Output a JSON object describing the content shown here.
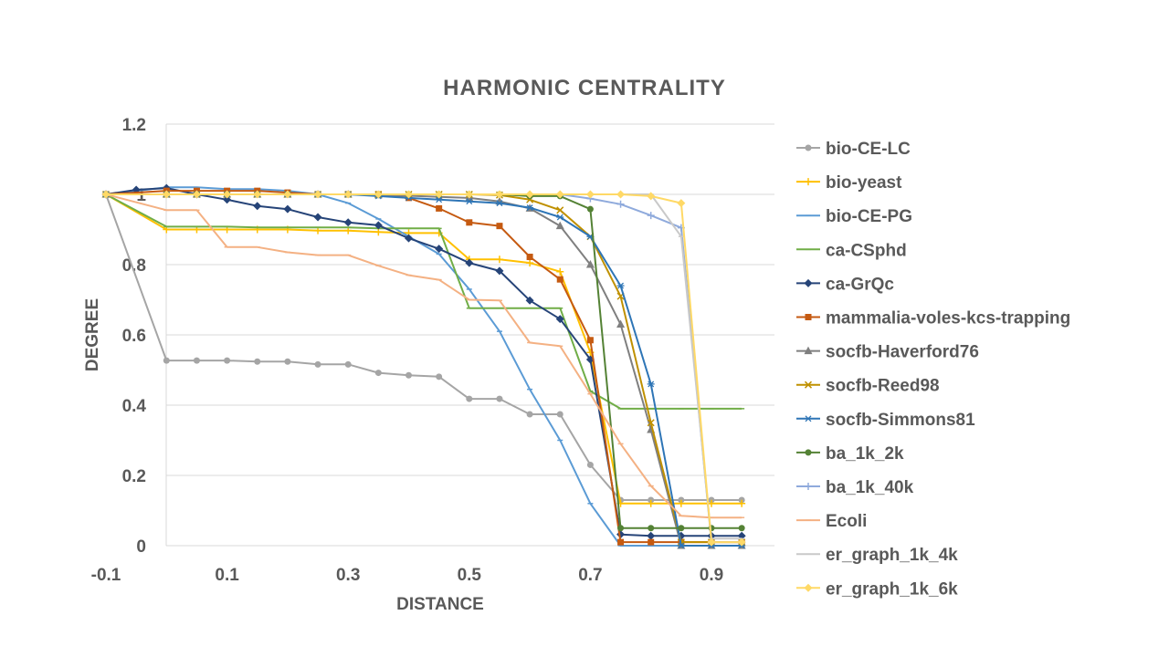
{
  "chart_data": {
    "type": "line",
    "title": "HARMONIC CENTRALITY",
    "xlabel": "DISTANCE",
    "ylabel": "DEGREE",
    "xlim": [
      -0.1,
      0.95
    ],
    "ylim": [
      0,
      1.2
    ],
    "x_ticks": [
      "-0.1",
      "0.1",
      "0.3",
      "0.5",
      "0.7",
      "0.9"
    ],
    "y_ticks": [
      "0",
      "0.2",
      "0.4",
      "0.6",
      "0.8",
      "1",
      "1.2"
    ],
    "grid": "horizontal",
    "legend_position": "right",
    "x": [
      -0.1,
      -0.05,
      0,
      0.05,
      0.1,
      0.15,
      0.2,
      0.25,
      0.3,
      0.35,
      0.4,
      0.45,
      0.5,
      0.55,
      0.6,
      0.65,
      0.7,
      0.75,
      0.8,
      0.85,
      0.9,
      0.95
    ],
    "series": [
      {
        "name": "bio-CE-LC",
        "color": "#a5a5a5",
        "marker": "circle",
        "values": [
          1,
          null,
          0.527,
          0.527,
          0.527,
          0.524,
          0.524,
          0.516,
          0.516,
          0.492,
          0.485,
          0.481,
          0.418,
          0.418,
          0.374,
          0.374,
          0.23,
          0.13,
          0.13,
          0.13,
          0.13,
          0.13
        ]
      },
      {
        "name": "bio-yeast",
        "color": "#ffc000",
        "marker": "plus",
        "values": [
          1,
          null,
          0.9,
          0.9,
          0.9,
          0.9,
          0.9,
          0.897,
          0.897,
          0.893,
          0.89,
          0.89,
          0.815,
          0.815,
          0.805,
          0.78,
          0.55,
          0.12,
          0.12,
          0.12,
          0.12,
          0.12
        ]
      },
      {
        "name": "bio-CE-PG",
        "color": "#5b9bd5",
        "marker": "dash",
        "values": [
          1,
          null,
          1.02,
          1.02,
          1.015,
          1.015,
          1.01,
          1.0,
          0.975,
          0.93,
          0.88,
          0.83,
          0.73,
          0.61,
          0.445,
          0.3,
          0.12,
          0.0,
          0.0,
          0.0,
          0.0,
          0.0
        ]
      },
      {
        "name": "ca-CSphd",
        "color": "#70ad47",
        "marker": "dash",
        "values": [
          1,
          null,
          0.908,
          0.908,
          0.908,
          0.906,
          0.906,
          0.906,
          0.906,
          0.903,
          0.903,
          0.903,
          0.676,
          0.676,
          0.676,
          0.676,
          0.44,
          0.39,
          0.39,
          0.39,
          0.39,
          0.39
        ]
      },
      {
        "name": "ca-GrQc",
        "color": "#264478",
        "marker": "diamond",
        "values": [
          1,
          1.013,
          1.018,
          1.0,
          0.985,
          0.967,
          0.958,
          0.935,
          0.92,
          0.912,
          0.875,
          0.845,
          0.805,
          0.782,
          0.698,
          0.645,
          0.53,
          0.032,
          0.028,
          0.028,
          0.028,
          0.028
        ]
      },
      {
        "name": "mammalia-voles-kcs-trapping",
        "color": "#c55a11",
        "marker": "square",
        "values": [
          1,
          null,
          1.01,
          1.01,
          1.01,
          1.01,
          1.005,
          1.0,
          1.0,
          1.0,
          0.99,
          0.96,
          0.92,
          0.91,
          0.822,
          0.758,
          0.585,
          0.01,
          0.01,
          0.01,
          0.01,
          0.01
        ]
      },
      {
        "name": "socfb-Haverford76",
        "color": "#7f7f7f",
        "marker": "triangle",
        "values": [
          1,
          null,
          1.0,
          1.0,
          1.0,
          1.0,
          1.0,
          1.0,
          1.0,
          0.998,
          0.996,
          0.993,
          0.99,
          0.98,
          0.96,
          0.91,
          0.8,
          0.63,
          0.33,
          0.0,
          0.0,
          0.0
        ]
      },
      {
        "name": "socfb-Reed98",
        "color": "#bf9000",
        "marker": "x",
        "values": [
          1,
          null,
          1.0,
          1.0,
          1.0,
          1.0,
          1.0,
          1.0,
          1.0,
          1.0,
          1.0,
          1.0,
          1.0,
          0.998,
          0.985,
          0.955,
          0.88,
          0.71,
          0.35,
          0.01,
          0.01,
          0.01
        ]
      },
      {
        "name": "socfb-Simmons81",
        "color": "#2e75b6",
        "marker": "star",
        "values": [
          1,
          null,
          1.0,
          1.0,
          1.0,
          1.0,
          1.0,
          1.0,
          1.0,
          0.995,
          0.99,
          0.985,
          0.98,
          0.975,
          0.962,
          0.935,
          0.88,
          0.74,
          0.46,
          0.0,
          0.0,
          0.0
        ]
      },
      {
        "name": "ba_1k_2k",
        "color": "#548235",
        "marker": "circle",
        "values": [
          1,
          null,
          1.0,
          1.0,
          1.0,
          1.0,
          1.0,
          1.0,
          1.0,
          1.0,
          1.0,
          1.0,
          1.0,
          1.0,
          0.995,
          0.995,
          0.958,
          0.05,
          0.05,
          0.05,
          0.05,
          0.05
        ]
      },
      {
        "name": "ba_1k_40k",
        "color": "#8faadc",
        "marker": "plus",
        "values": [
          1,
          null,
          1.0,
          1.0,
          1.0,
          1.0,
          1.0,
          1.0,
          1.0,
          1.0,
          1.0,
          1.0,
          1.0,
          1.0,
          1.0,
          1.0,
          0.988,
          0.972,
          0.94,
          0.905,
          0.01,
          0.01
        ]
      },
      {
        "name": "Ecoli",
        "color": "#f4b183",
        "marker": "dash",
        "values": [
          1,
          null,
          0.955,
          0.955,
          0.85,
          0.85,
          0.835,
          0.827,
          0.827,
          0.797,
          0.77,
          0.757,
          0.7,
          0.698,
          0.578,
          0.568,
          0.432,
          0.29,
          0.17,
          0.085,
          0.08,
          0.08
        ]
      },
      {
        "name": "er_graph_1k_4k",
        "color": "#c9c9c9",
        "marker": "dash",
        "values": [
          1,
          null,
          1.0,
          1.0,
          1.0,
          1.0,
          1.0,
          1.0,
          1.0,
          1.0,
          1.0,
          1.0,
          1.0,
          1.0,
          1.0,
          1.0,
          1.0,
          1.0,
          1.0,
          0.88,
          0.02,
          0.02
        ]
      },
      {
        "name": "er_graph_1k_6k",
        "color": "#ffd966",
        "marker": "diamond",
        "values": [
          1,
          null,
          1.0,
          1.0,
          1.0,
          1.0,
          1.0,
          1.0,
          1.0,
          1.0,
          1.0,
          1.0,
          1.0,
          1.0,
          1.0,
          1.0,
          1.0,
          1.0,
          0.995,
          0.975,
          0.01,
          0.01
        ]
      }
    ]
  }
}
